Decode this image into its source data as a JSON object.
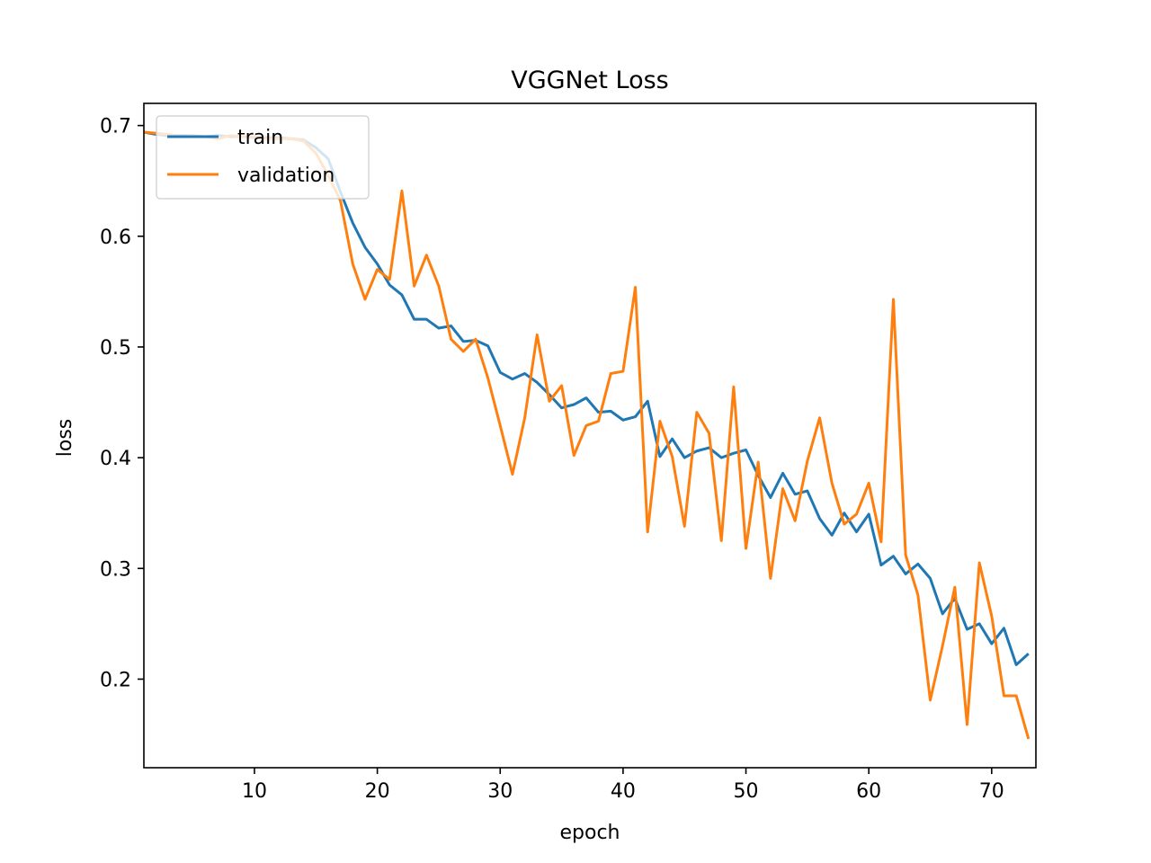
{
  "chart_data": {
    "type": "line",
    "title": "VGGNet Loss",
    "xlabel": "epoch",
    "ylabel": "loss",
    "xlim": [
      1,
      73.6
    ],
    "ylim": [
      0.12,
      0.72
    ],
    "xticks": [
      10,
      20,
      30,
      40,
      50,
      60,
      70
    ],
    "yticks": [
      0.2,
      0.3,
      0.4,
      0.5,
      0.6,
      0.7
    ],
    "ytick_labels": [
      "0.2",
      "0.3",
      "0.4",
      "0.5",
      "0.6",
      "0.7"
    ],
    "grid": false,
    "legend_position": "upper-left",
    "x": [
      1,
      2,
      3,
      4,
      5,
      6,
      7,
      8,
      9,
      10,
      11,
      12,
      13,
      14,
      15,
      16,
      17,
      18,
      19,
      20,
      21,
      22,
      23,
      24,
      25,
      26,
      27,
      28,
      29,
      30,
      31,
      32,
      33,
      34,
      35,
      36,
      37,
      38,
      39,
      40,
      41,
      42,
      43,
      44,
      45,
      46,
      47,
      48,
      49,
      50,
      51,
      52,
      53,
      54,
      55,
      56,
      57,
      58,
      59,
      60,
      61,
      62,
      63,
      64,
      65,
      66,
      67,
      68,
      69,
      70,
      71,
      72,
      73
    ],
    "series": [
      {
        "name": "train",
        "color": "#1f77b4",
        "values": [
          0.694,
          0.692,
          0.691,
          0.691,
          0.691,
          0.69,
          0.691,
          0.69,
          0.69,
          0.689,
          0.689,
          0.689,
          0.688,
          0.687,
          0.68,
          0.67,
          0.64,
          0.612,
          0.59,
          0.575,
          0.556,
          0.547,
          0.525,
          0.525,
          0.517,
          0.519,
          0.505,
          0.506,
          0.501,
          0.477,
          0.471,
          0.476,
          0.468,
          0.457,
          0.445,
          0.448,
          0.454,
          0.441,
          0.442,
          0.434,
          0.437,
          0.451,
          0.401,
          0.417,
          0.4,
          0.406,
          0.409,
          0.4,
          0.404,
          0.407,
          0.384,
          0.364,
          0.386,
          0.367,
          0.37,
          0.345,
          0.33,
          0.35,
          0.333,
          0.349,
          0.303,
          0.311,
          0.295,
          0.304,
          0.291,
          0.259,
          0.273,
          0.245,
          0.25,
          0.232,
          0.246,
          0.213,
          0.223
        ]
      },
      {
        "name": "validation",
        "color": "#ff7f0e",
        "values": [
          0.694,
          0.693,
          0.692,
          0.69,
          0.691,
          0.69,
          0.688,
          0.691,
          0.69,
          0.69,
          0.688,
          0.688,
          0.688,
          0.686,
          0.675,
          0.655,
          0.632,
          0.575,
          0.543,
          0.57,
          0.561,
          0.641,
          0.555,
          0.583,
          0.555,
          0.507,
          0.496,
          0.507,
          0.472,
          0.429,
          0.385,
          0.436,
          0.511,
          0.451,
          0.465,
          0.402,
          0.429,
          0.433,
          0.476,
          0.478,
          0.554,
          0.333,
          0.433,
          0.401,
          0.338,
          0.441,
          0.422,
          0.325,
          0.464,
          0.318,
          0.396,
          0.291,
          0.372,
          0.343,
          0.397,
          0.436,
          0.377,
          0.34,
          0.349,
          0.377,
          0.324,
          0.543,
          0.312,
          0.276,
          0.181,
          0.23,
          0.283,
          0.159,
          0.305,
          0.257,
          0.185,
          0.185,
          0.146
        ]
      }
    ]
  }
}
